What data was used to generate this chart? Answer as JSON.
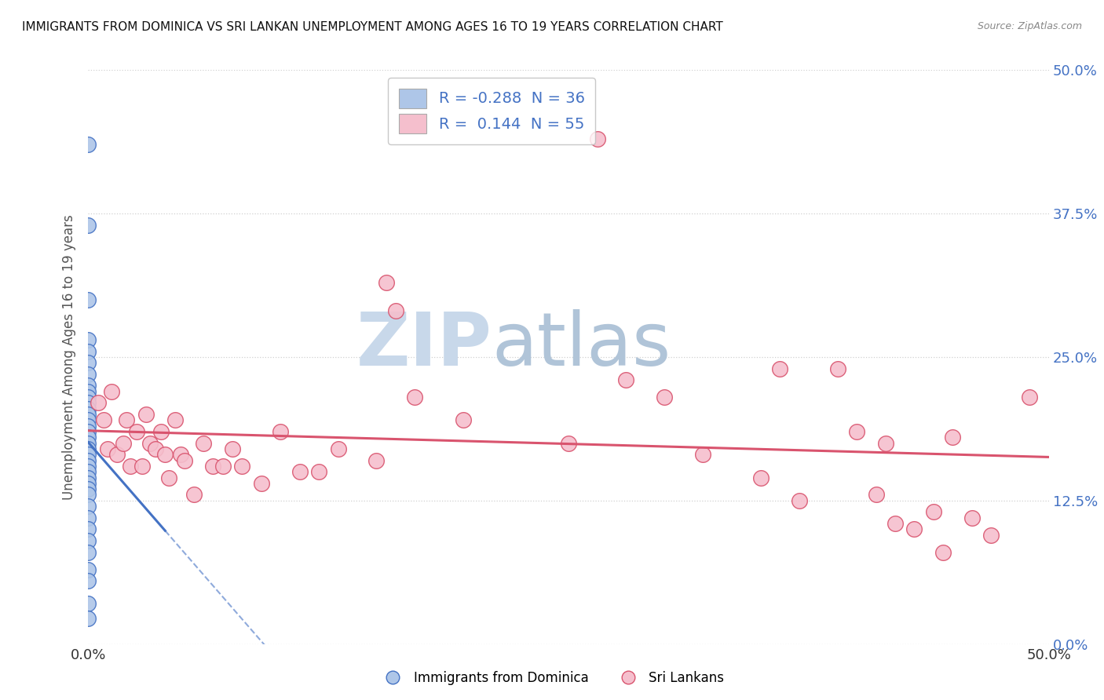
{
  "title": "IMMIGRANTS FROM DOMINICA VS SRI LANKAN UNEMPLOYMENT AMONG AGES 16 TO 19 YEARS CORRELATION CHART",
  "source": "Source: ZipAtlas.com",
  "ylabel": "Unemployment Among Ages 16 to 19 years",
  "yticks_labels": [
    "0.0%",
    "12.5%",
    "25.0%",
    "37.5%",
    "50.0%"
  ],
  "ytick_vals": [
    0.0,
    0.125,
    0.25,
    0.375,
    0.5
  ],
  "xlim": [
    0.0,
    0.5
  ],
  "ylim": [
    0.0,
    0.5
  ],
  "legend_r_blue": "-0.288",
  "legend_n_blue": "36",
  "legend_r_pink": "0.144",
  "legend_n_pink": "55",
  "blue_scatter": [
    [
      0.0,
      0.435
    ],
    [
      0.0,
      0.365
    ],
    [
      0.0,
      0.3
    ],
    [
      0.0,
      0.265
    ],
    [
      0.0,
      0.255
    ],
    [
      0.0,
      0.245
    ],
    [
      0.0,
      0.235
    ],
    [
      0.0,
      0.225
    ],
    [
      0.0,
      0.22
    ],
    [
      0.0,
      0.215
    ],
    [
      0.0,
      0.21
    ],
    [
      0.0,
      0.205
    ],
    [
      0.0,
      0.2
    ],
    [
      0.0,
      0.195
    ],
    [
      0.0,
      0.19
    ],
    [
      0.0,
      0.185
    ],
    [
      0.0,
      0.18
    ],
    [
      0.0,
      0.175
    ],
    [
      0.0,
      0.17
    ],
    [
      0.0,
      0.165
    ],
    [
      0.0,
      0.16
    ],
    [
      0.0,
      0.155
    ],
    [
      0.0,
      0.15
    ],
    [
      0.0,
      0.145
    ],
    [
      0.0,
      0.14
    ],
    [
      0.0,
      0.135
    ],
    [
      0.0,
      0.13
    ],
    [
      0.0,
      0.12
    ],
    [
      0.0,
      0.11
    ],
    [
      0.0,
      0.1
    ],
    [
      0.0,
      0.09
    ],
    [
      0.0,
      0.08
    ],
    [
      0.0,
      0.065
    ],
    [
      0.0,
      0.055
    ],
    [
      0.0,
      0.035
    ],
    [
      0.0,
      0.022
    ]
  ],
  "pink_scatter": [
    [
      0.005,
      0.21
    ],
    [
      0.008,
      0.195
    ],
    [
      0.01,
      0.17
    ],
    [
      0.012,
      0.22
    ],
    [
      0.015,
      0.165
    ],
    [
      0.018,
      0.175
    ],
    [
      0.02,
      0.195
    ],
    [
      0.022,
      0.155
    ],
    [
      0.025,
      0.185
    ],
    [
      0.028,
      0.155
    ],
    [
      0.03,
      0.2
    ],
    [
      0.032,
      0.175
    ],
    [
      0.035,
      0.17
    ],
    [
      0.038,
      0.185
    ],
    [
      0.04,
      0.165
    ],
    [
      0.042,
      0.145
    ],
    [
      0.045,
      0.195
    ],
    [
      0.048,
      0.165
    ],
    [
      0.05,
      0.16
    ],
    [
      0.055,
      0.13
    ],
    [
      0.06,
      0.175
    ],
    [
      0.065,
      0.155
    ],
    [
      0.07,
      0.155
    ],
    [
      0.075,
      0.17
    ],
    [
      0.08,
      0.155
    ],
    [
      0.09,
      0.14
    ],
    [
      0.1,
      0.185
    ],
    [
      0.11,
      0.15
    ],
    [
      0.12,
      0.15
    ],
    [
      0.13,
      0.17
    ],
    [
      0.15,
      0.16
    ],
    [
      0.155,
      0.315
    ],
    [
      0.16,
      0.29
    ],
    [
      0.17,
      0.215
    ],
    [
      0.195,
      0.195
    ],
    [
      0.25,
      0.175
    ],
    [
      0.265,
      0.44
    ],
    [
      0.28,
      0.23
    ],
    [
      0.3,
      0.215
    ],
    [
      0.32,
      0.165
    ],
    [
      0.35,
      0.145
    ],
    [
      0.36,
      0.24
    ],
    [
      0.37,
      0.125
    ],
    [
      0.39,
      0.24
    ],
    [
      0.4,
      0.185
    ],
    [
      0.41,
      0.13
    ],
    [
      0.415,
      0.175
    ],
    [
      0.42,
      0.105
    ],
    [
      0.43,
      0.1
    ],
    [
      0.44,
      0.115
    ],
    [
      0.445,
      0.08
    ],
    [
      0.45,
      0.18
    ],
    [
      0.46,
      0.11
    ],
    [
      0.47,
      0.095
    ],
    [
      0.49,
      0.215
    ]
  ],
  "blue_color": "#aec6e8",
  "pink_color": "#f5bfcd",
  "blue_line_color": "#4472c4",
  "pink_line_color": "#d9546e",
  "background_color": "#ffffff",
  "grid_color": "#d0d0d0",
  "watermark_zip_color": "#c8d8ea",
  "watermark_atlas_color": "#b0c4d8"
}
